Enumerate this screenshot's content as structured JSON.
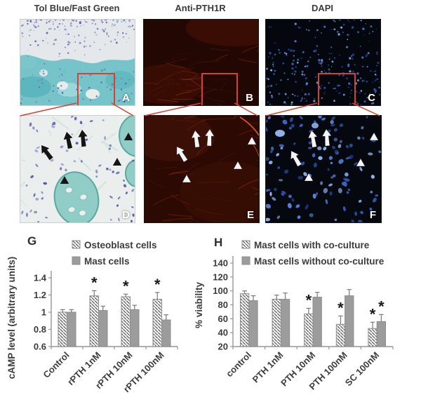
{
  "figure": {
    "column_titles": [
      "Tol Blue/Fast Green",
      "Anti-PTH1R",
      "DAPI"
    ],
    "row1_panels": [
      {
        "label": "A",
        "stain": "Toluidine Blue / Fast Green histology"
      },
      {
        "label": "B",
        "stain": "Anti-PTH1R immunofluorescence"
      },
      {
        "label": "C",
        "stain": "DAPI nuclear stain"
      }
    ],
    "row2_panels": [
      {
        "label": "D",
        "markers": {
          "arrows": 3,
          "arrowheads": 3
        }
      },
      {
        "label": "E",
        "markers": {
          "arrows": 3,
          "arrowheads": 3
        }
      },
      {
        "label": "F",
        "markers": {
          "arrows": 3,
          "arrowheads": 3
        }
      }
    ],
    "colors": {
      "roi_box": "#d9402e"
    }
  },
  "chart_data": [
    {
      "id": "G",
      "type": "bar",
      "panel_label": "G",
      "title": "",
      "xlabel": "",
      "ylabel": "cAMP level (arbitrary units)",
      "categories": [
        "Control",
        "rPTH 1nM",
        "rPTH 10nM",
        "rPTH 100nM"
      ],
      "series": [
        {
          "name": "Osteoblast cells",
          "style": "hatched",
          "values": [
            1.0,
            1.19,
            1.18,
            1.15
          ],
          "errors": [
            0.03,
            0.06,
            0.03,
            0.08
          ],
          "significant": [
            false,
            true,
            true,
            true
          ]
        },
        {
          "name": "Mast cells",
          "style": "solid",
          "values": [
            1.0,
            1.02,
            1.03,
            0.91
          ],
          "errors": [
            0.03,
            0.05,
            0.05,
            0.06
          ],
          "significant": [
            false,
            false,
            false,
            false
          ]
        }
      ],
      "ylim": [
        0.6,
        1.4
      ],
      "yticks": [
        0.6,
        0.8,
        1,
        1.2,
        1.4
      ],
      "bar_base": 0.6,
      "sig_marker": "*",
      "legend_position": "top",
      "grid": false
    },
    {
      "id": "H",
      "type": "bar",
      "panel_label": "H",
      "title": "",
      "xlabel": "",
      "ylabel": "% viability",
      "categories": [
        "control",
        "PTH 1nM",
        "PTH 10nM",
        "PTH 100nM",
        "SC 100nM"
      ],
      "series": [
        {
          "name": "Mast cells with co-culture",
          "style": "hatched",
          "values": [
            96,
            88,
            67,
            52,
            46
          ],
          "errors": [
            4,
            6,
            8,
            12,
            9
          ],
          "significant": [
            false,
            false,
            true,
            true,
            true
          ]
        },
        {
          "name": "Mast cells without co-culture",
          "style": "solid",
          "values": [
            86,
            88,
            91,
            93,
            56
          ],
          "errors": [
            7,
            9,
            7,
            9,
            10
          ],
          "significant": [
            false,
            false,
            false,
            false,
            true
          ]
        }
      ],
      "ylim": [
        20,
        140
      ],
      "yticks": [
        20,
        40,
        60,
        80,
        100,
        120,
        140
      ],
      "bar_base": 20,
      "sig_marker": "*",
      "legend_position": "top",
      "grid": false
    }
  ],
  "style_colors": {
    "bar_gray": "#9c9c9c",
    "hatch_line": "#6a6a6a",
    "axis": "#969696",
    "chart_text": "#3c3c3c",
    "significance": "#1a1a1a"
  }
}
